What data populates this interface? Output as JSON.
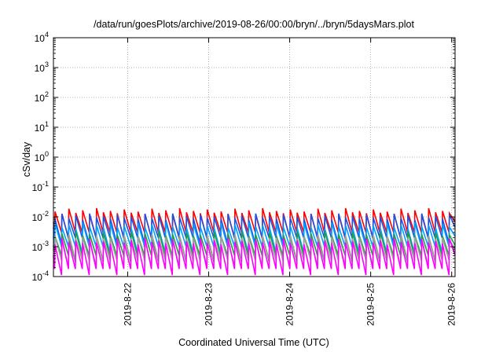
{
  "page": {
    "title": "/data/run/goesPlots/archive/2019-08-26/00:00/bryn/../bryn/5daysMars.plot"
  },
  "chart_data": {
    "type": "line",
    "title": "/data/run/goesPlots/archive/2019-08-26/00:00/bryn/../bryn/5daysMars.plot",
    "xlabel": "Coordinated Universal Time (UTC)",
    "ylabel": "cSv/day",
    "yscale": "log",
    "ylim": [
      0.0001,
      10000
    ],
    "xlim": [
      "2019-08-21T02:00",
      "2019-08-26T01:00"
    ],
    "x_ticks": [
      "2019-8-22",
      "2019-8-23",
      "2019-8-24",
      "2019-8-25",
      "2019-8-26"
    ],
    "y_ticks": [
      {
        "base": "10",
        "exp": "-4"
      },
      {
        "base": "10",
        "exp": "-3"
      },
      {
        "base": "10",
        "exp": "-2"
      },
      {
        "base": "10",
        "exp": "-1"
      },
      {
        "base": "10",
        "exp": "0"
      },
      {
        "base": "10",
        "exp": "1"
      },
      {
        "base": "10",
        "exp": "2"
      },
      {
        "base": "10",
        "exp": "3"
      },
      {
        "base": "10",
        "exp": "4"
      }
    ],
    "grid": true,
    "pattern": "sawtooth, approximately 2-hour cycles",
    "series": [
      {
        "color": "#ff0000",
        "peak": 0.015,
        "trough": 0.003
      },
      {
        "color": "#2050e0",
        "peak": 0.01,
        "trough": 0.002
      },
      {
        "color": "#00a0ff",
        "peak": 0.005,
        "trough": 0.001
      },
      {
        "color": "#20a040",
        "peak": 0.0025,
        "trough": 0.0005
      },
      {
        "color": "#a0a0a0",
        "peak": 0.002,
        "trough": 0.00035
      },
      {
        "color": "#ff00ff",
        "peak": 0.0015,
        "trough": 0.00018
      }
    ]
  }
}
